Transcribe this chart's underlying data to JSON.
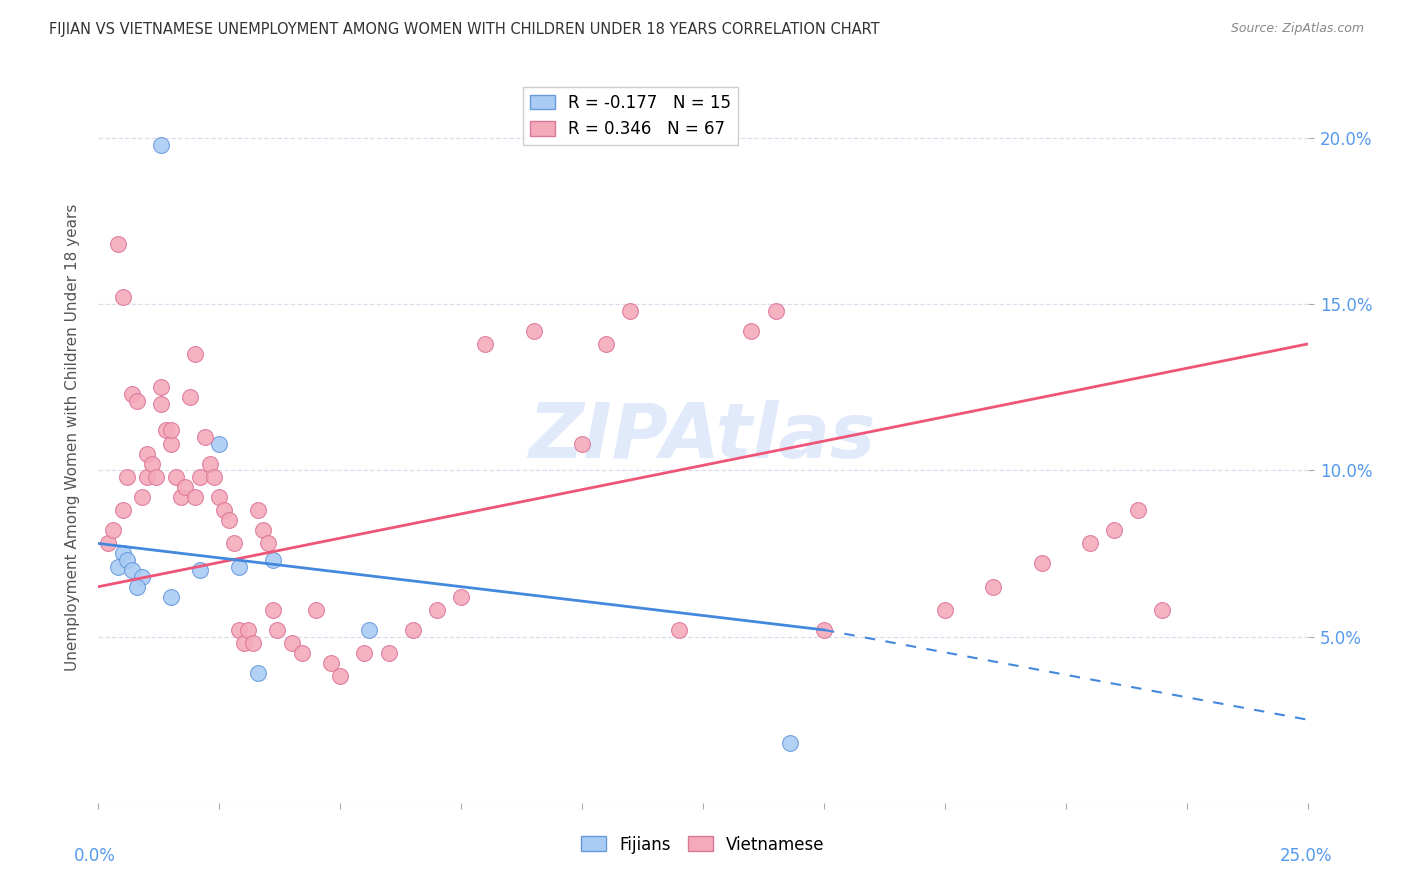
{
  "title": "FIJIAN VS VIETNAMESE UNEMPLOYMENT AMONG WOMEN WITH CHILDREN UNDER 18 YEARS CORRELATION CHART",
  "source": "Source: ZipAtlas.com",
  "ylabel": "Unemployment Among Women with Children Under 18 years",
  "xlim": [
    0.0,
    25.0
  ],
  "ylim": [
    0.0,
    22.0
  ],
  "yticks": [
    5.0,
    10.0,
    15.0,
    20.0
  ],
  "ytick_labels": [
    "5.0%",
    "10.0%",
    "15.0%",
    "20.0%"
  ],
  "fijians_R": -0.177,
  "fijians_N": 15,
  "vietnamese_R": 0.346,
  "vietnamese_N": 67,
  "fijians_color": "#aaccf4",
  "vietnamese_color": "#f4aabb",
  "fijians_edge_color": "#6699dd",
  "vietnamese_edge_color": "#dd7799",
  "fijians_line_color": "#4488dd",
  "vietnamese_line_color": "#ee5577",
  "watermark": "ZIPAtlas",
  "watermark_color": "#ccddf8",
  "fijians_x": [
    1.3,
    2.5,
    0.5,
    0.4,
    0.6,
    0.7,
    0.9,
    0.8,
    1.5,
    2.1,
    2.9,
    3.6,
    5.6,
    3.3,
    14.3
  ],
  "fijians_y": [
    19.8,
    10.8,
    7.5,
    7.1,
    7.3,
    7.0,
    6.8,
    6.5,
    6.2,
    7.0,
    7.1,
    7.3,
    5.2,
    3.9,
    1.8
  ],
  "vietnamese_x": [
    0.2,
    0.3,
    0.4,
    0.5,
    0.5,
    0.6,
    0.7,
    0.8,
    0.9,
    1.0,
    1.0,
    1.1,
    1.2,
    1.3,
    1.3,
    1.4,
    1.5,
    1.5,
    1.6,
    1.7,
    1.8,
    1.9,
    2.0,
    2.0,
    2.1,
    2.2,
    2.3,
    2.4,
    2.5,
    2.6,
    2.7,
    2.8,
    2.9,
    3.0,
    3.1,
    3.2,
    3.3,
    3.4,
    3.5,
    3.6,
    3.7,
    4.0,
    4.2,
    4.5,
    4.8,
    5.0,
    5.5,
    6.0,
    6.5,
    7.0,
    7.5,
    8.0,
    9.0,
    10.0,
    10.5,
    11.0,
    12.0,
    13.5,
    14.0,
    15.0,
    17.5,
    18.5,
    19.5,
    20.5,
    21.0,
    21.5,
    22.0
  ],
  "vietnamese_y": [
    7.8,
    8.2,
    16.8,
    15.2,
    8.8,
    9.8,
    12.3,
    12.1,
    9.2,
    9.8,
    10.5,
    10.2,
    9.8,
    12.5,
    12.0,
    11.2,
    10.8,
    11.2,
    9.8,
    9.2,
    9.5,
    12.2,
    13.5,
    9.2,
    9.8,
    11.0,
    10.2,
    9.8,
    9.2,
    8.8,
    8.5,
    7.8,
    5.2,
    4.8,
    5.2,
    4.8,
    8.8,
    8.2,
    7.8,
    5.8,
    5.2,
    4.8,
    4.5,
    5.8,
    4.2,
    3.8,
    4.5,
    4.5,
    5.2,
    5.8,
    6.2,
    13.8,
    14.2,
    10.8,
    13.8,
    14.8,
    5.2,
    14.2,
    14.8,
    5.2,
    5.8,
    6.5,
    7.2,
    7.8,
    8.2,
    8.8,
    5.8
  ],
  "fij_line_x0": 0.0,
  "fij_line_y0": 7.8,
  "fij_line_x1": 15.0,
  "fij_line_y1": 5.2,
  "fij_dash_x0": 15.0,
  "fij_dash_y0": 5.2,
  "fij_dash_x1": 25.0,
  "fij_dash_y1": 2.5,
  "viet_line_x0": 0.0,
  "viet_line_y0": 6.5,
  "viet_line_x1": 25.0,
  "viet_line_y1": 13.8
}
